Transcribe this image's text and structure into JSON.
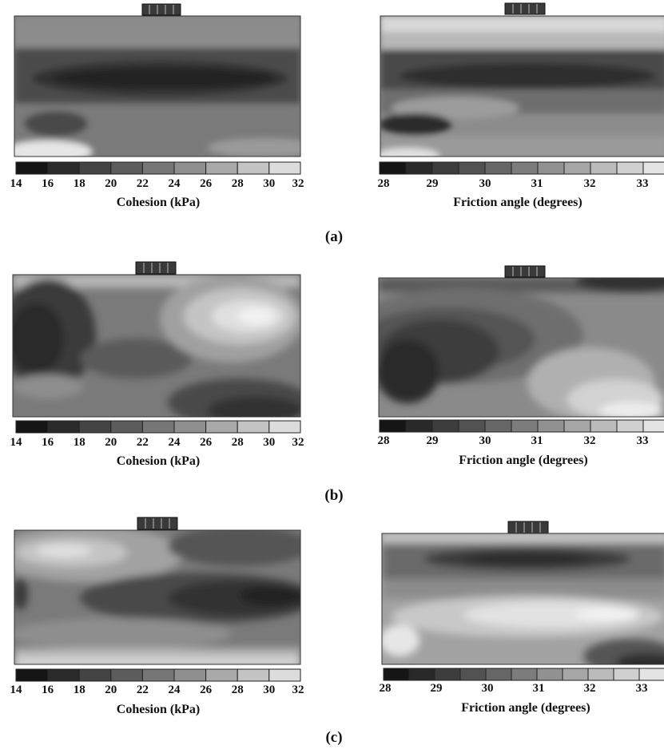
{
  "figure": {
    "rows": [
      {
        "caption": "(a)",
        "panels": [
          {
            "colorbar_label": "Cohesion (kPa)",
            "tick_labels": [
              "14",
              "16",
              "18",
              "20",
              "22",
              "24",
              "26",
              "28",
              "30",
              "32"
            ]
          },
          {
            "colorbar_label": "Friction angle (degrees)",
            "tick_labels": [
              "28",
              "29",
              "30",
              "31",
              "32",
              "33"
            ]
          }
        ]
      },
      {
        "caption": "(b)",
        "panels": [
          {
            "colorbar_label": "Cohesion (kPa)",
            "tick_labels": [
              "14",
              "16",
              "18",
              "20",
              "22",
              "24",
              "26",
              "28",
              "30",
              "32"
            ]
          },
          {
            "colorbar_label": "Friction angle (degrees)",
            "tick_labels": [
              "28",
              "29",
              "30",
              "31",
              "32",
              "33"
            ]
          }
        ]
      },
      {
        "caption": "(c)",
        "panels": [
          {
            "colorbar_label": "Cohesion (kPa)",
            "tick_labels": [
              "14",
              "16",
              "18",
              "20",
              "22",
              "24",
              "26",
              "28",
              "30",
              "32"
            ]
          },
          {
            "colorbar_label": "Friction angle (degrees)",
            "tick_labels": [
              "28",
              "29",
              "30",
              "31",
              "32",
              "33"
            ]
          }
        ]
      }
    ]
  },
  "chart_data": [
    {
      "type": "heatmap",
      "panel": "(a) left",
      "colorbar_label": "Cohesion (kPa)",
      "colorbar_range": [
        14,
        32
      ],
      "colorbar_ticks": [
        14,
        16,
        18,
        20,
        22,
        24,
        26,
        28,
        30,
        32
      ]
    },
    {
      "type": "heatmap",
      "panel": "(a) right",
      "colorbar_label": "Friction angle (degrees)",
      "colorbar_range": [
        28,
        33.5
      ],
      "colorbar_ticks": [
        28,
        29,
        30,
        31,
        32,
        33
      ]
    },
    {
      "type": "heatmap",
      "panel": "(b) left",
      "colorbar_label": "Cohesion (kPa)",
      "colorbar_range": [
        14,
        32
      ],
      "colorbar_ticks": [
        14,
        16,
        18,
        20,
        22,
        24,
        26,
        28,
        30,
        32
      ]
    },
    {
      "type": "heatmap",
      "panel": "(b) right",
      "colorbar_label": "Friction angle (degrees)",
      "colorbar_range": [
        28,
        33.5
      ],
      "colorbar_ticks": [
        28,
        29,
        30,
        31,
        32,
        33
      ]
    },
    {
      "type": "heatmap",
      "panel": "(c) left",
      "colorbar_label": "Cohesion (kPa)",
      "colorbar_range": [
        14,
        32
      ],
      "colorbar_ticks": [
        14,
        16,
        18,
        20,
        22,
        24,
        26,
        28,
        30,
        32
      ]
    },
    {
      "type": "heatmap",
      "panel": "(c) right",
      "colorbar_label": "Friction angle (degrees)",
      "colorbar_range": [
        28,
        33.5
      ],
      "colorbar_ticks": [
        28,
        29,
        30,
        31,
        32,
        33
      ]
    }
  ]
}
